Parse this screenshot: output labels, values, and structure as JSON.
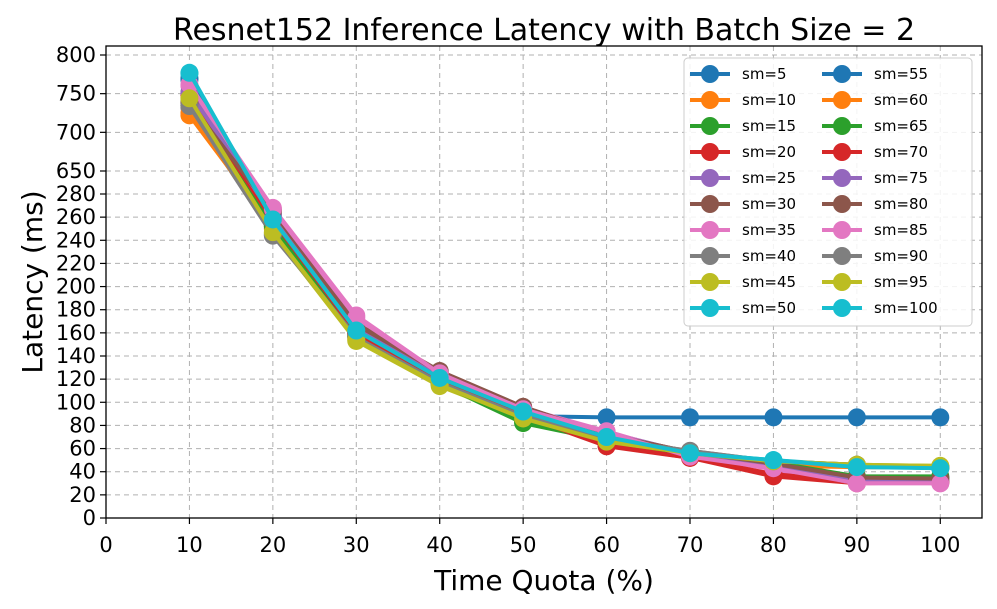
{
  "chart_data": {
    "type": "line",
    "title": "Resnet152 Inference Latency with Batch Size = 2",
    "xlabel": "Time Quota (%)",
    "ylabel": "Latency (ms)",
    "x": [
      10,
      20,
      30,
      40,
      50,
      60,
      70,
      80,
      90,
      100
    ],
    "xlim": [
      0,
      105
    ],
    "xticks": [
      "0",
      "10",
      "20",
      "30",
      "40",
      "50",
      "60",
      "70",
      "80",
      "90",
      "100"
    ],
    "yscale": "broken: linear 0-280, compressed 280-650, linear 650-800",
    "yticks": [
      "0",
      "20",
      "40",
      "60",
      "80",
      "100",
      "120",
      "140",
      "160",
      "180",
      "200",
      "220",
      "240",
      "260",
      "280",
      "650",
      "700",
      "750",
      "800"
    ],
    "grid": true,
    "legend": {
      "placement": "top-right",
      "columns": 2
    },
    "series": [
      {
        "name": "sm=5",
        "color": "#1f77b4",
        "values": [
          770,
          262,
          160,
          120,
          88,
          87,
          87,
          87,
          87,
          87
        ]
      },
      {
        "name": "sm=10",
        "color": "#ff7f0e",
        "values": [
          722,
          252,
          157,
          117,
          85,
          65,
          54,
          45,
          44,
          44
        ]
      },
      {
        "name": "sm=15",
        "color": "#2ca02c",
        "values": [
          735,
          253,
          158,
          116,
          82,
          67,
          55,
          48,
          35,
          35
        ]
      },
      {
        "name": "sm=20",
        "color": "#d62728",
        "values": [
          745,
          258,
          160,
          118,
          88,
          62,
          52,
          36,
          30,
          31
        ]
      },
      {
        "name": "sm=25",
        "color": "#9467bd",
        "values": [
          750,
          262,
          165,
          122,
          92,
          74,
          56,
          44,
          32,
          32
        ]
      },
      {
        "name": "sm=30",
        "color": "#8c564b",
        "values": [
          735,
          266,
          168,
          127,
          96,
          72,
          57,
          48,
          34,
          34
        ]
      },
      {
        "name": "sm=35",
        "color": "#e377c2",
        "values": [
          760,
          268,
          175,
          125,
          95,
          75,
          54,
          42,
          30,
          30
        ]
      },
      {
        "name": "sm=40",
        "color": "#7f7f7f",
        "values": [
          732,
          244,
          157,
          117,
          88,
          68,
          58,
          49,
          46,
          44
        ]
      },
      {
        "name": "sm=45",
        "color": "#bcbd22",
        "values": [
          742,
          246,
          153,
          114,
          86,
          66,
          56,
          49,
          46,
          45
        ]
      },
      {
        "name": "sm=50",
        "color": "#17becf",
        "values": [
          776,
          256,
          162,
          120,
          91,
          70,
          56,
          50,
          45,
          43
        ]
      },
      {
        "name": "sm=55",
        "color": "#1f77b4",
        "values": [
          768,
          258,
          160,
          121,
          92,
          70,
          55,
          49,
          45,
          43
        ]
      },
      {
        "name": "sm=60",
        "color": "#ff7f0e",
        "values": [
          725,
          250,
          155,
          116,
          85,
          66,
          55,
          47,
          44,
          44
        ]
      },
      {
        "name": "sm=65",
        "color": "#2ca02c",
        "values": [
          738,
          252,
          157,
          116,
          83,
          67,
          55,
          48,
          36,
          36
        ]
      },
      {
        "name": "sm=70",
        "color": "#d62728",
        "values": [
          748,
          257,
          160,
          119,
          88,
          63,
          52,
          38,
          31,
          31
        ]
      },
      {
        "name": "sm=75",
        "color": "#9467bd",
        "values": [
          752,
          261,
          166,
          123,
          93,
          73,
          56,
          45,
          33,
          33
        ]
      },
      {
        "name": "sm=80",
        "color": "#8c564b",
        "values": [
          738,
          265,
          167,
          126,
          96,
          72,
          57,
          47,
          35,
          34
        ]
      },
      {
        "name": "sm=85",
        "color": "#e377c2",
        "values": [
          762,
          267,
          173,
          125,
          94,
          74,
          53,
          43,
          30,
          30
        ]
      },
      {
        "name": "sm=90",
        "color": "#7f7f7f",
        "values": [
          734,
          245,
          156,
          117,
          88,
          68,
          58,
          49,
          46,
          44
        ]
      },
      {
        "name": "sm=95",
        "color": "#bcbd22",
        "values": [
          744,
          247,
          154,
          115,
          86,
          66,
          56,
          49,
          46,
          45
        ]
      },
      {
        "name": "sm=100",
        "color": "#17becf",
        "values": [
          777,
          258,
          162,
          121,
          92,
          70,
          56,
          50,
          44,
          43
        ]
      }
    ]
  }
}
